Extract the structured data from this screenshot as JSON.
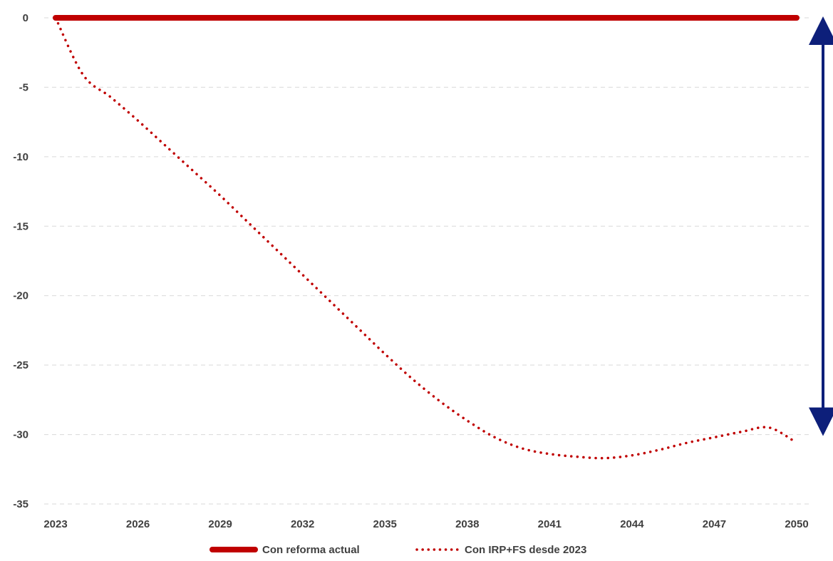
{
  "chart_data": {
    "type": "line",
    "x": [
      2023,
      2024,
      2025,
      2026,
      2027,
      2028,
      2029,
      2030,
      2031,
      2032,
      2033,
      2034,
      2035,
      2036,
      2037,
      2038,
      2039,
      2040,
      2041,
      2042,
      2043,
      2044,
      2045,
      2046,
      2047,
      2048,
      2049,
      2050
    ],
    "xticks": [
      "2023",
      "2026",
      "2029",
      "2032",
      "2035",
      "2038",
      "2041",
      "2044",
      "2047",
      "2050"
    ],
    "yticks": [
      "0",
      "-5",
      "-10",
      "-15",
      "-20",
      "-25",
      "-30",
      "-35"
    ],
    "ylim": [
      -35,
      0
    ],
    "grid": "horizontal dashed",
    "legend_position": "bottom",
    "series": [
      {
        "name": "Con reforma actual",
        "style": "solid",
        "color": "#c00000",
        "values": [
          0,
          0,
          0,
          0,
          0,
          0,
          0,
          0,
          0,
          0,
          0,
          0,
          0,
          0,
          0,
          0,
          0,
          0,
          0,
          0,
          0,
          0,
          0,
          0,
          0,
          0,
          0,
          0
        ]
      },
      {
        "name": "Con IRP+FS desde 2023",
        "style": "dotted",
        "color": "#c00000",
        "values": [
          0,
          -4.1,
          -5.7,
          -7.4,
          -9.2,
          -11.0,
          -12.8,
          -14.7,
          -16.6,
          -18.5,
          -20.4,
          -22.3,
          -24.2,
          -26.0,
          -27.6,
          -29.0,
          -30.2,
          -31.0,
          -31.4,
          -31.6,
          -31.7,
          -31.5,
          -31.1,
          -30.6,
          -30.2,
          -29.8,
          -29.5,
          -30.6
        ]
      }
    ],
    "annotation": {
      "type": "double-arrow",
      "color": "#0d1f7a",
      "from_value": 0,
      "to_value": -29.8
    }
  }
}
